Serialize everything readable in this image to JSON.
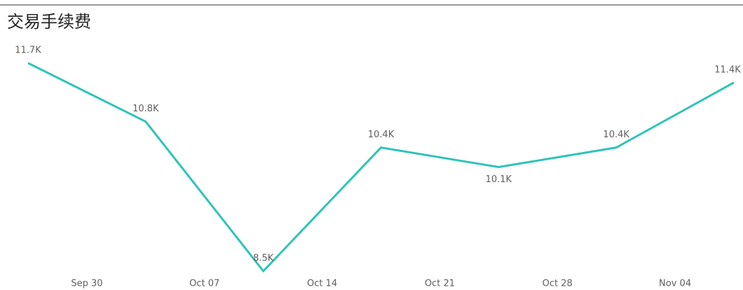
{
  "chart_data": {
    "type": "line",
    "title": "交易手续费",
    "categories": [
      null,
      null,
      null,
      null,
      null,
      null,
      null
    ],
    "xtick_labels": [
      "Sep 30",
      "Oct 07",
      "Oct 14",
      "Oct 21",
      "Oct 28",
      "Nov 04"
    ],
    "series": [
      {
        "color": "#2ec4b6",
        "values": [
          11700,
          10800,
          8500,
          10400,
          10100,
          10400,
          11400
        ],
        "value_labels": [
          "11.7K",
          "10.8K",
          "8.5K",
          "10.4K",
          "10.1K",
          "10.4K",
          "11.4K"
        ]
      }
    ]
  }
}
